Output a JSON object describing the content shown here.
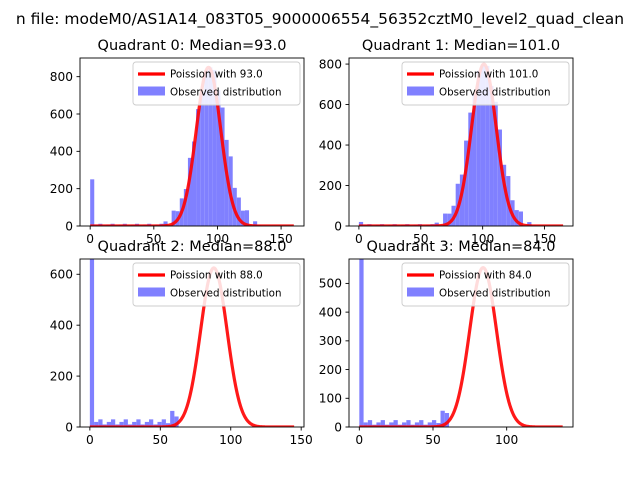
{
  "suptitle": "n file: modeM0/AS1A14_083T05_9000006554_56352cztM0_level2_quad_clean",
  "colors": {
    "hist": "#8080ff",
    "curve": "#ff0000",
    "axes": "#000000",
    "legend_edge": "#cccccc"
  },
  "chart_data": [
    {
      "type": "bar",
      "title": "Quadrant 0: Median=93.0",
      "median": 93.0,
      "legend": [
        "Poission with 93.0",
        "Observed distribution"
      ],
      "xlim": [
        -8,
        168
      ],
      "ylim": [
        0,
        900
      ],
      "xticks": [
        0,
        50,
        100,
        150
      ],
      "yticks": [
        0,
        200,
        400,
        600,
        800
      ],
      "bin_width": 3.2,
      "zero_bin": 250,
      "hist_jitter": [
        0,
        15,
        -10,
        20,
        -15,
        30,
        -25,
        10,
        0,
        40,
        -20,
        15,
        -10,
        5,
        10,
        -5,
        0,
        5,
        0,
        0
      ],
      "tail": {
        "start": 0,
        "end": 160,
        "level": 4
      },
      "hist_scale": 1.0,
      "hist_mean": 94.5,
      "hist_sd": 11.8,
      "curve_peak": 850,
      "curve_sd": 9.6,
      "curve_range": [
        0,
        160
      ]
    },
    {
      "type": "bar",
      "title": "Quadrant 1: Median=101.0",
      "median": 101.0,
      "legend": [
        "Poission with 101.0",
        "Observed distribution"
      ],
      "xlim": [
        -8,
        173
      ],
      "ylim": [
        0,
        830
      ],
      "xticks": [
        0,
        50,
        100,
        150
      ],
      "yticks": [
        0,
        200,
        400,
        600,
        800
      ],
      "bin_width": 3.4,
      "zero_bin": 20,
      "hist_jitter": [
        0,
        10,
        -15,
        20,
        15,
        -30,
        25,
        -10,
        0,
        30,
        -20,
        10,
        -5,
        5,
        0,
        0,
        0,
        0,
        0,
        0
      ],
      "tail": {
        "start": 0,
        "end": 165,
        "level": 3
      },
      "hist_scale": 1.0,
      "hist_mean": 101.0,
      "hist_sd": 12.3,
      "curve_peak": 800,
      "curve_sd": 10.0,
      "curve_range": [
        0,
        165
      ]
    },
    {
      "type": "bar",
      "title": "Quadrant 2: Median=88.0",
      "median": 88.0,
      "legend": [
        "Poission with 88.0",
        "Observed distribution"
      ],
      "xlim": [
        -7,
        152
      ],
      "ylim": [
        0,
        660
      ],
      "xticks": [
        0,
        50,
        100,
        150
      ],
      "yticks": [
        0,
        200,
        400,
        600
      ],
      "bin_width": 3.0,
      "zero_bin": 660,
      "hist_jitter": [
        0,
        20,
        -15,
        10,
        30,
        -20,
        25,
        -10,
        40,
        -30,
        20,
        -10,
        5,
        0,
        5,
        0,
        0,
        0,
        0,
        0
      ],
      "tail": {
        "start": 0,
        "end": 60,
        "level": 10
      },
      "hist_scale": 1.0,
      "hist_mean": 89.0,
      "hist_sd": 13.2,
      "curve_peak": 625,
      "curve_sd": 9.4,
      "curve_range": [
        0,
        145
      ]
    },
    {
      "type": "bar",
      "title": "Quadrant 3: Median=84.0",
      "median": 84.0,
      "legend": [
        "Poission with 84.0",
        "Observed distribution"
      ],
      "xlim": [
        -7,
        145
      ],
      "ylim": [
        0,
        585
      ],
      "xticks": [
        0,
        50,
        100
      ],
      "yticks": [
        0,
        100,
        200,
        300,
        400,
        500
      ],
      "bin_width": 2.9,
      "zero_bin": 585,
      "hist_jitter": [
        0,
        25,
        -20,
        40,
        10,
        -30,
        50,
        -60,
        30,
        -20,
        15,
        -10,
        5,
        0,
        5,
        0,
        0,
        0,
        0,
        0
      ],
      "tail": {
        "start": 0,
        "end": 60,
        "level": 8
      },
      "hist_scale": 1.0,
      "hist_mean": 85.0,
      "hist_sd": 12.5,
      "curve_peak": 555,
      "curve_sd": 9.1,
      "curve_range": [
        0,
        138
      ]
    }
  ]
}
